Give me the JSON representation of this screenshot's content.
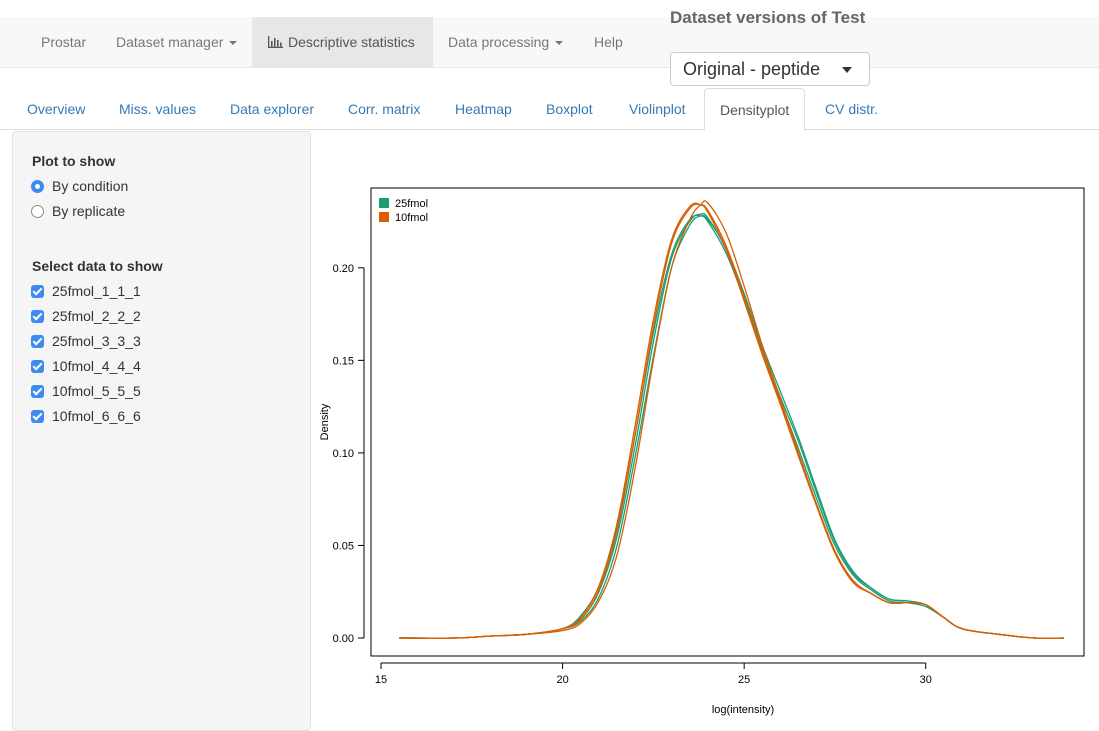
{
  "navbar": {
    "brand": "Prostar",
    "items": [
      {
        "label": "Dataset manager",
        "dropdown": true
      },
      {
        "label": "Descriptive statistics",
        "dropdown": false,
        "active": true,
        "icon": "bar-chart-icon"
      },
      {
        "label": "Data processing",
        "dropdown": true
      },
      {
        "label": "Help",
        "dropdown": false
      }
    ]
  },
  "versions": {
    "label": "Dataset versions of Test",
    "selected": "Original - peptide"
  },
  "tabs": [
    "Overview",
    "Miss. values",
    "Data explorer",
    "Corr. matrix",
    "Heatmap",
    "Boxplot",
    "Violinplot",
    "Densityplot",
    "CV distr."
  ],
  "active_tab": "Densityplot",
  "sidebar": {
    "plot_heading": "Plot to show",
    "plot_options": [
      {
        "label": "By condition",
        "selected": true
      },
      {
        "label": "By replicate",
        "selected": false
      }
    ],
    "data_heading": "Select data to show",
    "data_options": [
      {
        "label": "25fmol_1_1_1",
        "checked": true
      },
      {
        "label": "25fmol_2_2_2",
        "checked": true
      },
      {
        "label": "25fmol_3_3_3",
        "checked": true
      },
      {
        "label": "10fmol_4_4_4",
        "checked": true
      },
      {
        "label": "10fmol_5_5_5",
        "checked": true
      },
      {
        "label": "10fmol_6_6_6",
        "checked": true
      }
    ]
  },
  "colors": {
    "accent": "#337ab7",
    "checkbox": "#3d8bf0",
    "series_25fmol": "#1b9e77",
    "series_10fmol": "#d95f02"
  },
  "chart_data": {
    "type": "line",
    "title": "",
    "xlabel": "log(intensity)",
    "ylabel": "Density",
    "xlim": [
      15,
      34
    ],
    "ylim": [
      0,
      0.235
    ],
    "xticks": [
      15,
      20,
      25,
      30
    ],
    "yticks": [
      0.0,
      0.05,
      0.1,
      0.15,
      0.2
    ],
    "ytick_labels": [
      "0.00",
      "0.05",
      "0.10",
      "0.15",
      "0.20"
    ],
    "legend_position": "top-left",
    "legend": [
      {
        "name": "25fmol",
        "color": "#1b9e77"
      },
      {
        "name": "10fmol",
        "color": "#d95f02"
      }
    ],
    "x": [
      15.5,
      17,
      18,
      19,
      20,
      20.5,
      21,
      21.5,
      22,
      22.5,
      23,
      23.5,
      23.8,
      24,
      24.5,
      25,
      25.5,
      26,
      26.5,
      27,
      27.5,
      28,
      28.5,
      29,
      29.5,
      30,
      30.5,
      31,
      32,
      33,
      33.8
    ],
    "series": [
      {
        "group": "25fmol",
        "color": "#1b9e77",
        "values": [
          0.0,
          0.0,
          0.001,
          0.002,
          0.005,
          0.012,
          0.028,
          0.06,
          0.11,
          0.165,
          0.207,
          0.226,
          0.228,
          0.225,
          0.208,
          0.183,
          0.155,
          0.128,
          0.102,
          0.075,
          0.05,
          0.034,
          0.026,
          0.02,
          0.019,
          0.017,
          0.011,
          0.005,
          0.002,
          0.0,
          0.0
        ]
      },
      {
        "group": "25fmol",
        "color": "#1b9e77",
        "values": [
          0.0,
          0.0,
          0.001,
          0.002,
          0.005,
          0.01,
          0.025,
          0.055,
          0.104,
          0.16,
          0.205,
          0.225,
          0.229,
          0.227,
          0.21,
          0.184,
          0.156,
          0.13,
          0.106,
          0.078,
          0.052,
          0.035,
          0.027,
          0.021,
          0.02,
          0.018,
          0.011,
          0.005,
          0.002,
          0.0,
          0.0
        ]
      },
      {
        "group": "25fmol",
        "color": "#1b9e77",
        "values": [
          0.0,
          0.0,
          0.001,
          0.002,
          0.005,
          0.009,
          0.022,
          0.05,
          0.098,
          0.152,
          0.2,
          0.223,
          0.228,
          0.226,
          0.211,
          0.186,
          0.158,
          0.133,
          0.108,
          0.08,
          0.053,
          0.036,
          0.027,
          0.021,
          0.02,
          0.018,
          0.011,
          0.005,
          0.002,
          0.0,
          0.0
        ]
      },
      {
        "group": "10fmol",
        "color": "#d95f02",
        "values": [
          0.0,
          0.0,
          0.001,
          0.002,
          0.005,
          0.011,
          0.028,
          0.062,
          0.115,
          0.172,
          0.215,
          0.233,
          0.234,
          0.23,
          0.21,
          0.182,
          0.153,
          0.126,
          0.098,
          0.071,
          0.046,
          0.03,
          0.024,
          0.019,
          0.019,
          0.018,
          0.011,
          0.005,
          0.002,
          0.0,
          0.0
        ]
      },
      {
        "group": "10fmol",
        "color": "#d95f02",
        "values": [
          0.0,
          0.0,
          0.001,
          0.002,
          0.005,
          0.01,
          0.026,
          0.058,
          0.11,
          0.168,
          0.213,
          0.232,
          0.234,
          0.231,
          0.212,
          0.184,
          0.155,
          0.127,
          0.099,
          0.072,
          0.047,
          0.031,
          0.024,
          0.019,
          0.019,
          0.018,
          0.011,
          0.005,
          0.002,
          0.0,
          0.0
        ]
      },
      {
        "group": "10fmol",
        "color": "#d95f02",
        "values": [
          0.0,
          0.0,
          0.001,
          0.002,
          0.004,
          0.008,
          0.02,
          0.045,
          0.092,
          0.15,
          0.2,
          0.226,
          0.234,
          0.235,
          0.219,
          0.19,
          0.158,
          0.129,
          0.1,
          0.072,
          0.047,
          0.031,
          0.024,
          0.019,
          0.019,
          0.018,
          0.011,
          0.005,
          0.002,
          0.0,
          0.0
        ]
      }
    ]
  }
}
